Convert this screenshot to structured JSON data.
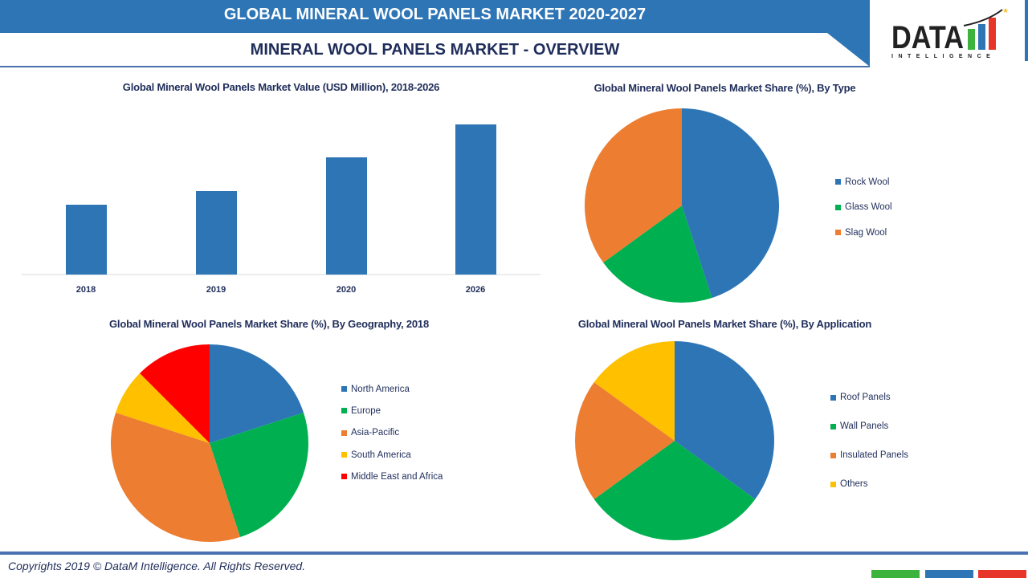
{
  "header": {
    "title": "GLOBAL MINERAL WOOL PANELS MARKET 2020-2027",
    "subtitle": "MINERAL WOOL PANELS MARKET - OVERVIEW",
    "brand_color": "#2E75B6"
  },
  "logo": {
    "text": "DATA",
    "subtext": "INTELLIGENCE"
  },
  "chart_data": [
    {
      "type": "bar",
      "title": "Global Mineral Wool Panels Market Value (USD Million), 2018-2026",
      "categories": [
        "2018",
        "2019",
        "2020",
        "2026"
      ],
      "values": [
        87,
        104,
        146,
        187
      ],
      "color": "#2E75B6",
      "grid": false
    },
    {
      "type": "pie",
      "title": "Global Mineral Wool Panels Market Share (%), By Type",
      "labels": [
        "Rock Wool",
        "Glass Wool",
        "Slag Wool"
      ],
      "values": [
        45,
        20,
        35
      ],
      "colors": [
        "#2E75B6",
        "#00B050",
        "#ED7D31"
      ],
      "legend": "right"
    },
    {
      "type": "pie",
      "title": "Global Mineral Wool Panels Market Share (%), By Geography, 2018",
      "labels": [
        "North America",
        "Europe",
        "Asia-Pacific",
        "South America",
        "Middle East and Africa"
      ],
      "values": [
        20,
        25,
        35,
        7.5,
        12.5
      ],
      "colors": [
        "#2E75B6",
        "#00B050",
        "#ED7D31",
        "#FFC000",
        "#FF0000"
      ],
      "legend": "right"
    },
    {
      "type": "pie",
      "title": "Global Mineral Wool Panels Market Share (%), By Application",
      "labels": [
        "Roof Panels",
        "Wall Panels",
        "Insulated Panels",
        "Others"
      ],
      "values": [
        35,
        30,
        20,
        15
      ],
      "colors": [
        "#2E75B6",
        "#00B050",
        "#ED7D31",
        "#FFC000"
      ],
      "legend": "right"
    }
  ],
  "footer": {
    "copyright": "Copyrights 2019 © DataM Intelligence. All Rights Reserved."
  }
}
